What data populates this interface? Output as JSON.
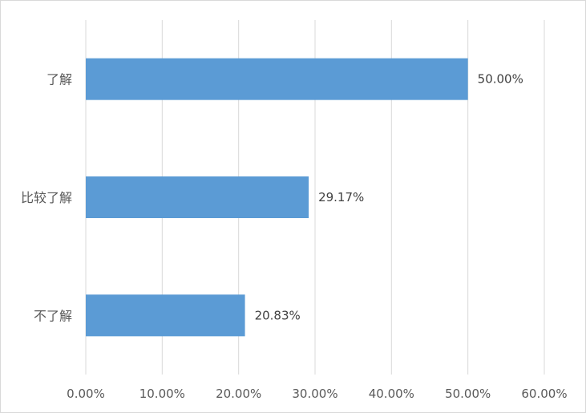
{
  "chart_data": {
    "type": "bar",
    "orientation": "horizontal",
    "categories": [
      "了解",
      "比较了解",
      "不了解"
    ],
    "values": [
      50.0,
      29.17,
      20.83
    ],
    "value_labels": [
      "50.00%",
      "29.17%",
      "20.83%"
    ],
    "xlim": [
      0,
      60
    ],
    "x_ticks": [
      "0.00%",
      "10.00%",
      "20.00%",
      "30.00%",
      "40.00%",
      "50.00%",
      "60.00%"
    ],
    "grid": "vertical",
    "legend": "none",
    "bar_color": "#5b9bd5",
    "grid_color": "#d9d9d9",
    "title": "",
    "xlabel": "",
    "ylabel": ""
  }
}
